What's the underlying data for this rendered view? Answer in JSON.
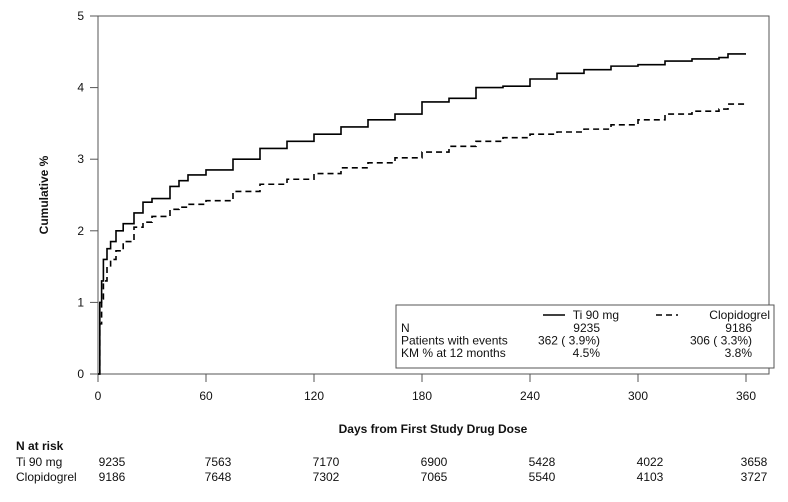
{
  "chart_data": {
    "type": "line",
    "ylabel": "Cumulative %",
    "xlabel": "Days from First Study Drug Dose",
    "xlim": [
      0,
      360
    ],
    "ylim": [
      0,
      5
    ],
    "xticks": [
      0,
      60,
      120,
      180,
      240,
      300,
      360
    ],
    "yticks": [
      0,
      1,
      2,
      3,
      4,
      5
    ],
    "grid": false,
    "series": [
      {
        "name": "Ti 90 mg",
        "style": "solid",
        "color": "#000000",
        "x": [
          0,
          1,
          2,
          3,
          5,
          7,
          10,
          14,
          20,
          25,
          30,
          40,
          45,
          50,
          60,
          75,
          90,
          105,
          120,
          135,
          150,
          165,
          180,
          195,
          210,
          225,
          240,
          255,
          270,
          285,
          300,
          315,
          330,
          345,
          350,
          360
        ],
        "y": [
          0,
          1.0,
          1.3,
          1.6,
          1.75,
          1.85,
          2.0,
          2.1,
          2.25,
          2.4,
          2.45,
          2.62,
          2.7,
          2.78,
          2.85,
          3.0,
          3.15,
          3.25,
          3.35,
          3.45,
          3.55,
          3.63,
          3.8,
          3.85,
          4.0,
          4.02,
          4.12,
          4.2,
          4.25,
          4.3,
          4.32,
          4.37,
          4.4,
          4.42,
          4.47,
          4.47
        ]
      },
      {
        "name": "Clopidogrel",
        "style": "dashed",
        "color": "#000000",
        "x": [
          0,
          1,
          2,
          3,
          5,
          7,
          10,
          14,
          20,
          25,
          30,
          40,
          45,
          50,
          60,
          75,
          90,
          105,
          120,
          135,
          150,
          165,
          180,
          195,
          210,
          225,
          240,
          255,
          270,
          285,
          300,
          315,
          330,
          345,
          350,
          360
        ],
        "y": [
          0,
          0.7,
          1.05,
          1.3,
          1.5,
          1.6,
          1.72,
          1.85,
          2.05,
          2.12,
          2.2,
          2.3,
          2.33,
          2.37,
          2.42,
          2.55,
          2.65,
          2.72,
          2.8,
          2.88,
          2.95,
          3.02,
          3.1,
          3.18,
          3.25,
          3.3,
          3.35,
          3.38,
          3.42,
          3.48,
          3.55,
          3.63,
          3.67,
          3.7,
          3.77,
          3.77
        ]
      }
    ],
    "legend": {
      "placement": "bottom-right",
      "columns": [
        "Ti 90 mg",
        "Clopidogrel"
      ],
      "rows": [
        {
          "label": "N",
          "values": [
            "9235",
            "9186"
          ]
        },
        {
          "label": "Patients with events",
          "values": [
            "362 ( 3.9%)",
            "306 ( 3.3%)"
          ]
        },
        {
          "label": "KM % at 12 months",
          "values": [
            "4.5%",
            "3.8%"
          ]
        }
      ]
    },
    "risk_table": {
      "title": "N at risk",
      "rows": [
        {
          "label": "Ti 90 mg",
          "values": [
            "9235",
            "7563",
            "7170",
            "6900",
            "5428",
            "4022",
            "3658"
          ]
        },
        {
          "label": "Clopidogrel",
          "values": [
            "9186",
            "7648",
            "7302",
            "7065",
            "5540",
            "4103",
            "3727"
          ]
        }
      ]
    }
  }
}
